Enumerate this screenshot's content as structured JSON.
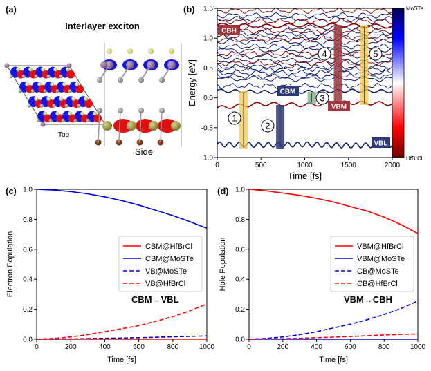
{
  "panel_a": {
    "label": "(a)",
    "title": "Interlayer exciton",
    "top_label": "Top",
    "side_label": "Side"
  },
  "panel_b": {
    "label": "(b)",
    "colorbar_top": "MoSTe",
    "colorbar_bottom": "HfBrCl",
    "tags": {
      "cbh": "CBH",
      "cbm": "CBM",
      "vbm": "VBM",
      "vbl": "VBL"
    },
    "steps": [
      "1",
      "2",
      "3",
      "4",
      "5"
    ],
    "colors": {
      "mosTe": "#0a1a6e",
      "hfbrcl": "#8b0000",
      "yellow": "#f2c94c",
      "maroon": "#a0363b",
      "navy": "#2e3a7a",
      "green": "#7fae84"
    }
  },
  "chart_data": [
    {
      "type": "line",
      "panel": "(b)",
      "xlabel": "Time [fs]",
      "ylabel": "Energy [eV]",
      "xlim": [
        0,
        2000
      ],
      "ylim": [
        -1.0,
        1.5
      ],
      "xticks": [
        "0",
        "500",
        "1000",
        "1500",
        "2000"
      ],
      "yticks": [
        "-1.0",
        "-0.5",
        "0.0",
        "0.5",
        "1.0",
        "1.5"
      ],
      "grid": false,
      "series": [
        {
          "name": "VBL",
          "x": [
            0,
            500,
            1000,
            1500,
            2000
          ],
          "values": [
            -0.78,
            -0.79,
            -0.78,
            -0.8,
            -0.79
          ]
        },
        {
          "name": "VBM",
          "x": [
            0,
            500,
            1000,
            1500,
            2000
          ],
          "values": [
            -0.17,
            -0.1,
            -0.12,
            -0.08,
            -0.1
          ]
        },
        {
          "name": "CBM",
          "x": [
            0,
            500,
            1000,
            1500,
            2000
          ],
          "values": [
            0.12,
            0.1,
            0.1,
            0.12,
            0.11
          ]
        },
        {
          "name": "CBH",
          "x": [
            0,
            500,
            1000,
            1500,
            2000
          ],
          "values": [
            1.22,
            1.2,
            1.22,
            1.21,
            1.2
          ]
        }
      ]
    },
    {
      "type": "line",
      "panel": "(c)",
      "xlabel": "Time [fs]",
      "ylabel": "Electron Population",
      "xlim": [
        0,
        1000
      ],
      "ylim": [
        0.0,
        1.0
      ],
      "xticks": [
        "0",
        "200",
        "400",
        "600",
        "800",
        "1000"
      ],
      "yticks": [
        "0.0",
        "0.2",
        "0.4",
        "0.6",
        "0.8",
        "1.0"
      ],
      "legend": "center-right",
      "annotation": "CBM→VBL",
      "x": [
        0,
        100,
        200,
        300,
        400,
        500,
        600,
        700,
        800,
        900,
        1000
      ],
      "series": [
        {
          "name": "CBM@HfBrCl",
          "color": "#ff0000",
          "dash": false,
          "values": [
            0.0,
            0.0,
            0.0,
            0.0,
            0.0,
            0.0,
            0.0,
            0.0,
            0.0,
            0.0,
            0.0
          ]
        },
        {
          "name": "CBM@MoSTe",
          "color": "#0000dd",
          "dash": false,
          "values": [
            1.0,
            0.995,
            0.985,
            0.97,
            0.95,
            0.925,
            0.895,
            0.86,
            0.825,
            0.785,
            0.74
          ]
        },
        {
          "name": "VB@MoSTe",
          "color": "#0000dd",
          "dash": true,
          "values": [
            0.0,
            0.001,
            0.002,
            0.004,
            0.006,
            0.008,
            0.01,
            0.013,
            0.016,
            0.019,
            0.022
          ]
        },
        {
          "name": "VB@HfBrCl",
          "color": "#ff0000",
          "dash": true,
          "values": [
            0.0,
            0.005,
            0.015,
            0.03,
            0.05,
            0.07,
            0.09,
            0.12,
            0.15,
            0.19,
            0.235
          ]
        }
      ]
    },
    {
      "type": "line",
      "panel": "(d)",
      "xlabel": "Time [fs]",
      "ylabel": "Hole Population",
      "xlim": [
        0,
        1000
      ],
      "ylim": [
        0.0,
        1.0
      ],
      "xticks": [
        "0",
        "200",
        "400",
        "600",
        "800",
        "1000"
      ],
      "yticks": [
        "0.0",
        "0.2",
        "0.4",
        "0.6",
        "0.8",
        "1.0"
      ],
      "legend": "center-right",
      "annotation": "VBM→CBH",
      "x": [
        0,
        100,
        200,
        300,
        400,
        500,
        600,
        700,
        800,
        900,
        1000
      ],
      "series": [
        {
          "name": "VBM@HfBrCl",
          "color": "#ff0000",
          "dash": false,
          "values": [
            1.0,
            0.99,
            0.975,
            0.96,
            0.94,
            0.915,
            0.885,
            0.855,
            0.815,
            0.765,
            0.705
          ]
        },
        {
          "name": "VBM@MoSTe",
          "color": "#0000dd",
          "dash": false,
          "values": [
            0.0,
            0.0,
            0.0,
            0.0,
            0.0,
            0.0,
            0.0,
            0.0,
            0.0,
            0.0,
            0.0
          ]
        },
        {
          "name": "CB@MoSTe",
          "color": "#0000dd",
          "dash": true,
          "values": [
            0.0,
            0.005,
            0.015,
            0.03,
            0.05,
            0.075,
            0.1,
            0.13,
            0.165,
            0.205,
            0.255
          ]
        },
        {
          "name": "CB@HfBrCl",
          "color": "#ff0000",
          "dash": true,
          "values": [
            0.0,
            0.001,
            0.003,
            0.006,
            0.01,
            0.014,
            0.018,
            0.023,
            0.028,
            0.032,
            0.035
          ]
        }
      ]
    }
  ]
}
